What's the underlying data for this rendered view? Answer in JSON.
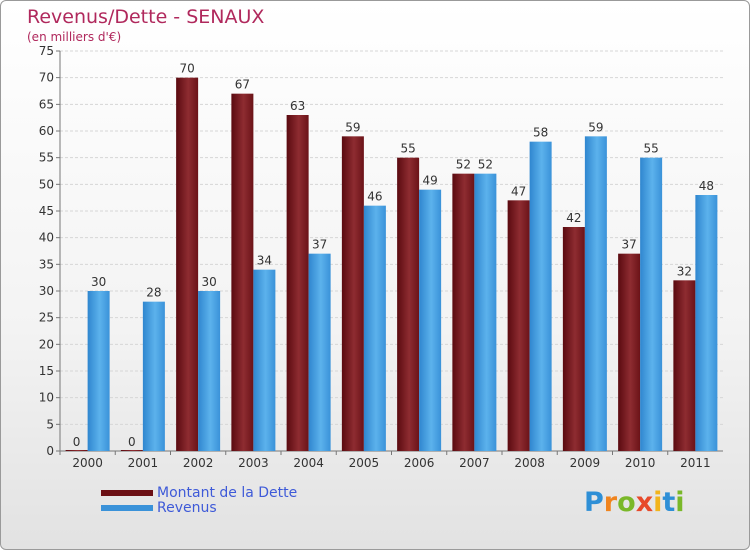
{
  "title": "Revenus/Dette - SENAUX",
  "subtitle": "(en milliers d'€)",
  "logo": {
    "letters": [
      "P",
      "r",
      "o",
      "x",
      "i",
      "t",
      "i"
    ],
    "colors": [
      "#2e8fd6",
      "#f0841e",
      "#7ab829",
      "#e7492a",
      "#f2b41c",
      "#2e8fd6",
      "#7ab829"
    ]
  },
  "colors": {
    "dette": "#6b0f14",
    "dette_light": "#a03a3e",
    "revenus": "#3a92d9",
    "revenus_light": "#5ab4ee",
    "title": "#b0285c"
  },
  "chart_data": {
    "type": "bar",
    "title": "Revenus/Dette - SENAUX",
    "subtitle": "(en milliers d'€)",
    "categories": [
      "2000",
      "2001",
      "2002",
      "2003",
      "2004",
      "2005",
      "2006",
      "2007",
      "2008",
      "2009",
      "2010",
      "2011"
    ],
    "series": [
      {
        "name": "Montant de la Dette",
        "values": [
          0,
          0,
          70,
          67,
          63,
          59,
          55,
          52,
          47,
          42,
          37,
          32
        ]
      },
      {
        "name": "Revenus",
        "values": [
          30,
          28,
          30,
          34,
          37,
          46,
          49,
          52,
          58,
          59,
          55,
          48
        ]
      }
    ],
    "ylim": [
      0,
      75
    ],
    "yticks": [
      0,
      5,
      10,
      15,
      20,
      25,
      30,
      35,
      40,
      45,
      50,
      55,
      60,
      65,
      70,
      75
    ],
    "grid": true,
    "legend": "bottom-left"
  }
}
